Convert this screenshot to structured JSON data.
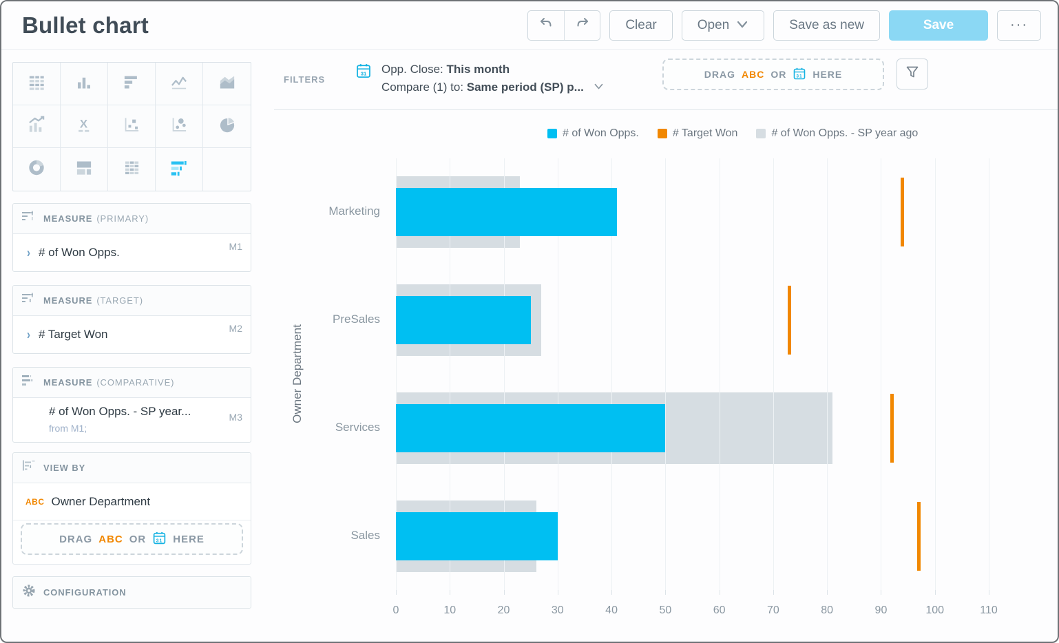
{
  "window": {
    "title": "Bullet chart"
  },
  "toolbar": {
    "undo_icon": "undo-arrow",
    "redo_icon": "redo-arrow",
    "clear": "Clear",
    "open": "Open",
    "save_as_new": "Save as new",
    "save": "Save",
    "more": "···",
    "accent_color": "#8bd8f4"
  },
  "vis_picker": {
    "items": [
      {
        "name": "table",
        "selected": false
      },
      {
        "name": "column-chart",
        "selected": false
      },
      {
        "name": "bar-chart",
        "selected": false
      },
      {
        "name": "line-chart",
        "selected": false
      },
      {
        "name": "area-chart",
        "selected": false
      },
      {
        "name": "combo-chart",
        "selected": false
      },
      {
        "name": "headline",
        "selected": false
      },
      {
        "name": "scatter-plot",
        "selected": false
      },
      {
        "name": "bubble-chart",
        "selected": false
      },
      {
        "name": "pie-chart",
        "selected": false
      },
      {
        "name": "donut-chart",
        "selected": false
      },
      {
        "name": "treemap",
        "selected": false
      },
      {
        "name": "heatmap",
        "selected": false
      },
      {
        "name": "bullet-chart",
        "selected": true
      }
    ]
  },
  "buckets": {
    "primary": {
      "header": "MEASURE",
      "header_qualifier": "(PRIMARY)",
      "item": {
        "name": "# of Won Opps.",
        "badge": "M1"
      }
    },
    "target": {
      "header": "MEASURE",
      "header_qualifier": "(TARGET)",
      "item": {
        "name": "# Target Won",
        "badge": "M2"
      }
    },
    "comparative": {
      "header": "MEASURE",
      "header_qualifier": "(COMPARATIVE)",
      "item": {
        "name": "# of Won Opps. - SP year...",
        "badge": "M3",
        "subtitle": "from M1;"
      }
    },
    "view_by": {
      "header": "VIEW BY",
      "item": {
        "tag": "ABC",
        "name": "Owner Department"
      }
    },
    "configuration": {
      "label": "CONFIGURATION"
    }
  },
  "drop_zone": {
    "drag": "DRAG",
    "abc": "ABC",
    "or": "OR",
    "here": "HERE"
  },
  "filters": {
    "label": "FILTERS",
    "chip": {
      "icon": "calendar-icon",
      "line1_prefix": "Opp. Close: ",
      "line1_value": "This month",
      "line2_prefix": "Compare (1) to: ",
      "line2_value": "Same period (SP) p..."
    }
  },
  "colors": {
    "primary_cyan": "#00bff2",
    "target_orange": "#f18701",
    "comparative_gray": "#d6dde2",
    "accent_blue": "#14b2e2",
    "abc_orange": "#f18701"
  },
  "chart_data": {
    "type": "bullet",
    "title": "",
    "categories": [
      "Marketing",
      "PreSales",
      "Services",
      "Sales"
    ],
    "series": [
      {
        "name": "# of Won Opps.",
        "role": "primary",
        "color": "#00bff2",
        "values": [
          41,
          25,
          50,
          30
        ]
      },
      {
        "name": "# Target Won",
        "role": "target",
        "color": "#f18701",
        "values": [
          94,
          73,
          92,
          97
        ]
      },
      {
        "name": "# of Won Opps. - SP year ago",
        "role": "comparative",
        "color": "#d6dde2",
        "values": [
          23,
          27,
          81,
          26
        ]
      }
    ],
    "xlabel": "",
    "ylabel": "Owner Department",
    "xlim": [
      0,
      110
    ],
    "xticks": [
      0,
      10,
      20,
      30,
      40,
      50,
      60,
      70,
      80,
      90,
      100,
      110
    ],
    "grid": true,
    "legend_position": "top"
  }
}
